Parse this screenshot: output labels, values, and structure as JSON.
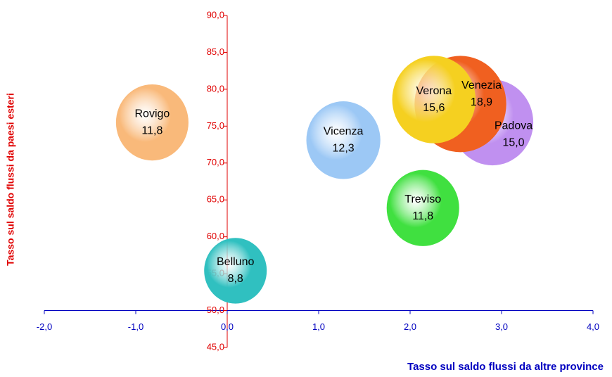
{
  "chart_data": {
    "type": "bubble",
    "xlabel": "Tasso sul saldo flussi da altre province",
    "ylabel": "Tasso sul saldo flussi da paesi esteri",
    "categories": [
      "Rovigo",
      "Vicenza",
      "Padova",
      "Venezia",
      "Verona",
      "Treviso",
      "Belluno"
    ],
    "x": [
      -0.82,
      1.27,
      2.9,
      2.55,
      2.26,
      2.14,
      0.09
    ],
    "values": [
      75.5,
      73.1,
      75.5,
      78.0,
      78.6,
      63.9,
      55.4
    ],
    "sizes": [
      11.8,
      12.3,
      15.0,
      18.9,
      15.6,
      11.8,
      8.8
    ],
    "value_labels": [
      "11,8",
      "12,3",
      "15,0",
      "18,9",
      "15,6",
      "11,8",
      "8,8"
    ],
    "colors": [
      "#f9b97a",
      "#9cc8f5",
      "#c090f0",
      "#f06020",
      "#f5d020",
      "#40e040",
      "#30c0c0"
    ],
    "xlim": [
      -2,
      4
    ],
    "xticks": [
      {
        "value": -2,
        "label": "-2,0"
      },
      {
        "value": -1,
        "label": "-1,0"
      },
      {
        "value": 0,
        "label": "0,0"
      },
      {
        "value": 1,
        "label": "1,0"
      },
      {
        "value": 2,
        "label": "2,0"
      },
      {
        "value": 3,
        "label": "3,0"
      },
      {
        "value": 4,
        "label": "4,0"
      }
    ],
    "ylim": [
      45,
      90
    ],
    "yticks": [
      {
        "value": 45,
        "label": "45,0"
      },
      {
        "value": 50,
        "label": "50,0"
      },
      {
        "value": 55,
        "label": "55,0"
      },
      {
        "value": 60,
        "label": "60,0"
      },
      {
        "value": 65,
        "label": "65,0"
      },
      {
        "value": 70,
        "label": "70,0"
      },
      {
        "value": 75,
        "label": "75,0"
      },
      {
        "value": 80,
        "label": "80,0"
      },
      {
        "value": 85,
        "label": "85,0"
      },
      {
        "value": 90,
        "label": "90,0"
      }
    ]
  }
}
